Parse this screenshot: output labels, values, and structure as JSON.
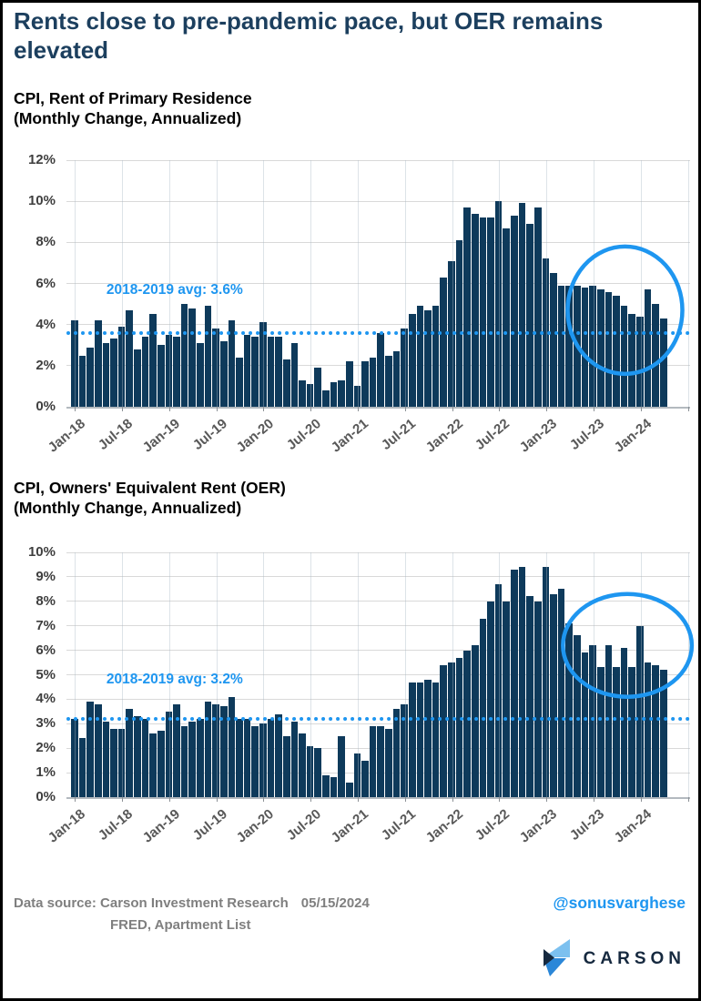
{
  "header": {
    "title": "Rents close to pre-pandemic pace, but OER remains elevated"
  },
  "footer": {
    "source_line1": "Data source: Carson Investment Research",
    "source_line2": "FRED, Apartment List",
    "date": "05/15/2024",
    "handle": "@sonusvarghese",
    "logo_text": "CARSON"
  },
  "colors": {
    "bar": "#0e3a5b",
    "accent_blue": "#1e96f0",
    "title_navy": "#1c3f5e",
    "gridline": "#d9d9d9",
    "axis_text": "#595959",
    "footer_gray": "#7f7f7f",
    "logo_light_blue": "#7cc0ef",
    "logo_mid_blue": "#2b87d8",
    "logo_dark_navy": "#16293f"
  },
  "chart_data": [
    {
      "type": "bar",
      "title": "CPI, Rent of Primary Residence",
      "subtitle": "(Monthly Change, Annualized)",
      "unit": "%",
      "ylim": [
        0,
        12
      ],
      "ytick_step": 2,
      "grid": "horizontal",
      "legend": "none",
      "x_start": "2018-01",
      "x_end": "2024-04",
      "x_freq": "monthly",
      "x_tick_labels": [
        "Jan-18",
        "Jul-18",
        "Jan-19",
        "Jul-19",
        "Jan-20",
        "Jul-20",
        "Jan-21",
        "Jul-21",
        "Jan-22",
        "Jul-22",
        "Jan-23",
        "Jul-23",
        "Jan-24"
      ],
      "values": [
        4.2,
        2.5,
        2.9,
        4.2,
        3.1,
        3.3,
        3.9,
        4.7,
        2.8,
        3.4,
        4.5,
        3.0,
        3.5,
        3.4,
        5.0,
        4.8,
        3.1,
        4.9,
        3.8,
        3.2,
        4.2,
        2.4,
        3.5,
        3.4,
        4.1,
        3.4,
        3.4,
        2.3,
        3.1,
        1.3,
        1.1,
        1.9,
        0.8,
        1.2,
        1.3,
        2.2,
        1.0,
        2.2,
        2.4,
        3.6,
        2.5,
        2.7,
        3.8,
        4.5,
        4.9,
        4.7,
        4.9,
        6.3,
        7.1,
        8.1,
        9.7,
        9.4,
        9.2,
        9.2,
        10.0,
        8.7,
        9.3,
        9.9,
        8.9,
        9.7,
        7.2,
        6.5,
        5.9,
        5.9,
        5.9,
        5.8,
        5.9,
        5.7,
        5.6,
        5.4,
        4.9,
        4.5,
        4.4,
        5.7,
        5.0,
        4.3
      ],
      "avg_line": {
        "value": 3.6,
        "label": "2018-2019 avg: 3.6%",
        "label_month": 4.5,
        "label_value": 5.65
      },
      "highlight_circle": {
        "center_month_index": 70,
        "center_value": 4.7,
        "radius_months": 7.3,
        "radius_value": 3.1
      }
    },
    {
      "type": "bar",
      "title": "CPI, Owners' Equivalent Rent (OER)",
      "subtitle": "(Monthly Change, Annualized)",
      "unit": "%",
      "ylim": [
        0,
        10
      ],
      "ytick_step": 1,
      "grid": "horizontal",
      "legend": "none",
      "x_start": "2018-01",
      "x_end": "2024-04",
      "x_freq": "monthly",
      "x_tick_labels": [
        "Jan-18",
        "Jul-18",
        "Jan-19",
        "Jul-19",
        "Jan-20",
        "Jul-20",
        "Jan-21",
        "Jul-21",
        "Jan-22",
        "Jul-22",
        "Jan-23",
        "Jul-23",
        "Jan-24"
      ],
      "values": [
        3.2,
        2.4,
        3.9,
        3.8,
        3.1,
        2.8,
        2.8,
        3.6,
        3.3,
        3.2,
        2.6,
        2.7,
        3.5,
        3.8,
        2.9,
        3.1,
        3.2,
        3.9,
        3.8,
        3.7,
        4.1,
        3.2,
        3.2,
        2.9,
        3.0,
        3.2,
        3.4,
        2.5,
        3.1,
        2.6,
        2.1,
        2.0,
        0.9,
        0.8,
        2.5,
        0.6,
        1.8,
        1.5,
        2.9,
        2.9,
        2.8,
        3.6,
        3.8,
        4.7,
        4.7,
        4.8,
        4.7,
        5.4,
        5.5,
        5.7,
        6.0,
        6.2,
        7.3,
        8.0,
        8.7,
        8.0,
        9.3,
        9.4,
        8.2,
        8.0,
        9.4,
        8.3,
        8.5,
        7.1,
        6.6,
        5.9,
        6.2,
        5.3,
        6.2,
        5.3,
        6.1,
        5.3,
        7.0,
        5.5,
        5.4,
        5.2
      ],
      "avg_line": {
        "value": 3.2,
        "label": "2018-2019 avg: 3.2%",
        "label_month": 4.5,
        "label_value": 4.8
      },
      "highlight_circle": {
        "center_month_index": 70.3,
        "center_value": 6.2,
        "radius_months": 8.2,
        "radius_value": 2.1
      }
    }
  ]
}
